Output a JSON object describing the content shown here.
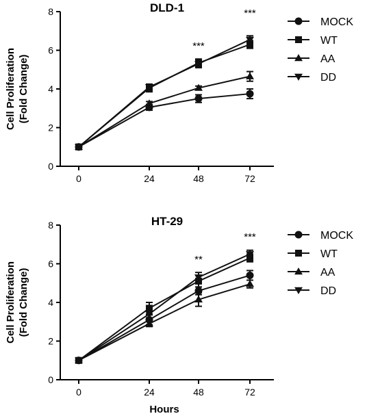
{
  "chart_data": [
    {
      "type": "line",
      "title": "DLD-1",
      "ylabel_line1": "Cell Proliferation",
      "ylabel_line2": "(Fold Change)",
      "xlabel": "",
      "x": [
        0,
        24,
        48,
        72
      ],
      "xticks": [
        "0",
        "24",
        "48",
        "72"
      ],
      "yticks": [
        "0",
        "2",
        "4",
        "6",
        "8"
      ],
      "ylim": [
        0,
        8
      ],
      "series": [
        {
          "name": "MOCK",
          "marker": "circle",
          "values": [
            1.0,
            3.05,
            3.5,
            3.75
          ],
          "err": [
            0.0,
            0.15,
            0.2,
            0.25
          ]
        },
        {
          "name": "WT",
          "marker": "square",
          "values": [
            1.0,
            4.05,
            5.35,
            6.3
          ],
          "err": [
            0.0,
            0.2,
            0.2,
            0.2
          ]
        },
        {
          "name": "AA",
          "marker": "triangle-up",
          "values": [
            1.0,
            3.25,
            4.05,
            4.65
          ],
          "err": [
            0.0,
            0.1,
            0.1,
            0.25
          ]
        },
        {
          "name": "DD",
          "marker": "triangle-down",
          "values": [
            1.0,
            4.1,
            5.3,
            6.55
          ],
          "err": [
            0.0,
            0.15,
            0.2,
            0.2
          ]
        }
      ],
      "annotations": [
        {
          "x": 48,
          "text": "***"
        },
        {
          "x": 72,
          "text": "***"
        }
      ]
    },
    {
      "type": "line",
      "title": "HT-29",
      "ylabel_line1": "Cell Proliferation",
      "ylabel_line2": "(Fold Change)",
      "xlabel": "Hours",
      "x": [
        0,
        24,
        48,
        72
      ],
      "xticks": [
        "0",
        "24",
        "48",
        "72"
      ],
      "yticks": [
        "0",
        "2",
        "4",
        "6",
        "8"
      ],
      "ylim": [
        0,
        8
      ],
      "series": [
        {
          "name": "MOCK",
          "marker": "circle",
          "values": [
            1.0,
            3.1,
            4.6,
            5.4
          ],
          "err": [
            0.0,
            0.25,
            0.2,
            0.25
          ]
        },
        {
          "name": "WT",
          "marker": "square",
          "values": [
            1.0,
            3.7,
            5.1,
            6.3
          ],
          "err": [
            0.0,
            0.3,
            0.3,
            0.2
          ]
        },
        {
          "name": "AA",
          "marker": "triangle-up",
          "values": [
            1.0,
            2.9,
            4.15,
            4.95
          ],
          "err": [
            0.0,
            0.15,
            0.35,
            0.2
          ]
        },
        {
          "name": "DD",
          "marker": "triangle-down",
          "values": [
            1.0,
            3.4,
            5.3,
            6.5
          ],
          "err": [
            0.0,
            0.2,
            0.25,
            0.2
          ]
        }
      ],
      "annotations": [
        {
          "x": 48,
          "text": "**"
        },
        {
          "x": 72,
          "text": "***"
        }
      ]
    }
  ]
}
